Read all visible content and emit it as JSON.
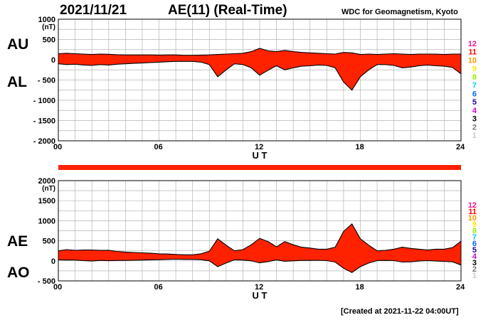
{
  "header": {
    "date": "2021/11/21",
    "title": "AE(11) (Real-Time)",
    "credit": "WDC for Geomagnetism, Kyoto"
  },
  "footer": {
    "created": "[Created at 2021-11-22 04:00UT]"
  },
  "labels": {
    "au": "AU",
    "al": "AL",
    "ae": "AE",
    "ao": "AO"
  },
  "colors": {
    "fill": "#ff2200",
    "line": "#000000",
    "grid": "#b4b4b4"
  },
  "station_scale": [
    {
      "label": "12",
      "color": "#ff1493"
    },
    {
      "label": "11",
      "color": "#ff0000"
    },
    {
      "label": "10",
      "color": "#ff9900"
    },
    {
      "label": "9",
      "color": "#ffee00"
    },
    {
      "label": "8",
      "color": "#99ee00"
    },
    {
      "label": "7",
      "color": "#00ccff"
    },
    {
      "label": "6",
      "color": "#0066ff"
    },
    {
      "label": "5",
      "color": "#2200aa"
    },
    {
      "label": "4",
      "color": "#cc00cc"
    },
    {
      "label": "3",
      "color": "#000000"
    },
    {
      "label": "2",
      "color": "#777777"
    },
    {
      "label": "1",
      "color": "#c8c8c8"
    }
  ],
  "chart_data": [
    {
      "type": "area",
      "xlabel": "U T",
      "unit": "(nT)",
      "xlim": [
        0,
        24
      ],
      "ylim": [
        -2000,
        1000
      ],
      "xticks": [
        "00",
        "06",
        "12",
        "18",
        "24"
      ],
      "yticks": [
        {
          "value": 1000,
          "label": "1000"
        },
        {
          "value": 500,
          "label": "500"
        },
        {
          "value": 0,
          "label": "0"
        },
        {
          "value": -500,
          "label": "- 500"
        },
        {
          "value": -1000,
          "label": "- 1000"
        },
        {
          "value": -1500,
          "label": "- 1500"
        },
        {
          "value": -2000,
          "label": "- 2000"
        }
      ],
      "grid": true,
      "series": [
        {
          "name": "AU",
          "x": [
            0,
            0.5,
            1,
            1.5,
            2,
            2.5,
            3,
            3.5,
            4,
            4.5,
            5,
            5.5,
            6,
            6.5,
            7,
            7.5,
            8,
            8.5,
            9,
            9.5,
            10,
            10.5,
            11,
            11.5,
            12,
            12.5,
            13,
            13.5,
            14,
            14.5,
            15,
            15.5,
            16,
            16.5,
            17,
            17.5,
            18,
            18.5,
            19,
            19.5,
            20,
            20.5,
            21,
            21.5,
            22,
            22.5,
            23,
            23.5,
            24
          ],
          "values": [
            150,
            160,
            150,
            140,
            130,
            140,
            135,
            125,
            120,
            120,
            120,
            120,
            115,
            120,
            120,
            110,
            110,
            115,
            120,
            130,
            140,
            150,
            160,
            200,
            280,
            220,
            200,
            230,
            200,
            180,
            170,
            160,
            150,
            140,
            180,
            170,
            130,
            140,
            130,
            140,
            150,
            140,
            130,
            140,
            140,
            140,
            130,
            140,
            140
          ]
        },
        {
          "name": "AL",
          "x": [
            0,
            0.5,
            1,
            1.5,
            2,
            2.5,
            3,
            3.5,
            4,
            4.5,
            5,
            5.5,
            6,
            6.5,
            7,
            7.5,
            8,
            8.5,
            9,
            9.5,
            10,
            10.5,
            11,
            11.5,
            12,
            12.5,
            13,
            13.5,
            14,
            14.5,
            15,
            15.5,
            16,
            16.5,
            17,
            17.5,
            18,
            18.5,
            19,
            19.5,
            20,
            20.5,
            21,
            21.5,
            22,
            22.5,
            23,
            23.5,
            24
          ],
          "values": [
            -100,
            -120,
            -110,
            -130,
            -140,
            -120,
            -130,
            -110,
            -100,
            -90,
            -80,
            -70,
            -60,
            -50,
            -40,
            -40,
            -40,
            -60,
            -120,
            -420,
            -250,
            -100,
            -120,
            -200,
            -380,
            -260,
            -150,
            -250,
            -200,
            -160,
            -150,
            -130,
            -140,
            -200,
            -550,
            -750,
            -420,
            -250,
            -120,
            -120,
            -140,
            -200,
            -180,
            -150,
            -130,
            -150,
            -160,
            -190,
            -350
          ]
        }
      ]
    },
    {
      "type": "area",
      "xlabel": "U T",
      "unit": "(nT)",
      "xlim": [
        0,
        24
      ],
      "ylim": [
        -500,
        2000
      ],
      "xticks": [
        "00",
        "06",
        "12",
        "18",
        "24"
      ],
      "yticks": [
        {
          "value": 2000,
          "label": "2000"
        },
        {
          "value": 1500,
          "label": "1500"
        },
        {
          "value": 1000,
          "label": "1000"
        },
        {
          "value": 500,
          "label": "500"
        },
        {
          "value": 0,
          "label": "0"
        },
        {
          "value": -500,
          "label": "- 500"
        }
      ],
      "grid": true,
      "series": [
        {
          "name": "AE",
          "x": [
            0,
            0.5,
            1,
            1.5,
            2,
            2.5,
            3,
            3.5,
            4,
            4.5,
            5,
            5.5,
            6,
            6.5,
            7,
            7.5,
            8,
            8.5,
            9,
            9.5,
            10,
            10.5,
            11,
            11.5,
            12,
            12.5,
            13,
            13.5,
            14,
            14.5,
            15,
            15.5,
            16,
            16.5,
            17,
            17.5,
            18,
            18.5,
            19,
            19.5,
            20,
            20.5,
            21,
            21.5,
            22,
            22.5,
            23,
            23.5,
            24
          ],
          "values": [
            250,
            280,
            260,
            270,
            270,
            260,
            265,
            235,
            220,
            210,
            200,
            190,
            175,
            170,
            160,
            150,
            150,
            175,
            240,
            550,
            390,
            250,
            280,
            400,
            560,
            480,
            350,
            480,
            400,
            340,
            320,
            290,
            290,
            340,
            730,
            920,
            550,
            390,
            250,
            260,
            290,
            340,
            310,
            290,
            270,
            290,
            290,
            330,
            490
          ]
        },
        {
          "name": "AO",
          "x": [
            0,
            0.5,
            1,
            1.5,
            2,
            2.5,
            3,
            3.5,
            4,
            4.5,
            5,
            5.5,
            6,
            6.5,
            7,
            7.5,
            8,
            8.5,
            9,
            9.5,
            10,
            10.5,
            11,
            11.5,
            12,
            12.5,
            13,
            13.5,
            14,
            14.5,
            15,
            15.5,
            16,
            16.5,
            17,
            17.5,
            18,
            18.5,
            19,
            19.5,
            20,
            20.5,
            21,
            21.5,
            22,
            22.5,
            23,
            23.5,
            24
          ],
          "values": [
            25,
            20,
            20,
            5,
            -5,
            10,
            3,
            8,
            10,
            15,
            20,
            25,
            28,
            35,
            40,
            35,
            35,
            28,
            0,
            -145,
            -55,
            25,
            20,
            0,
            -50,
            -20,
            25,
            -10,
            0,
            10,
            10,
            15,
            5,
            -30,
            -185,
            -290,
            -145,
            -55,
            5,
            10,
            5,
            -30,
            -25,
            -5,
            5,
            -5,
            -15,
            -25,
            -105
          ]
        }
      ]
    }
  ]
}
